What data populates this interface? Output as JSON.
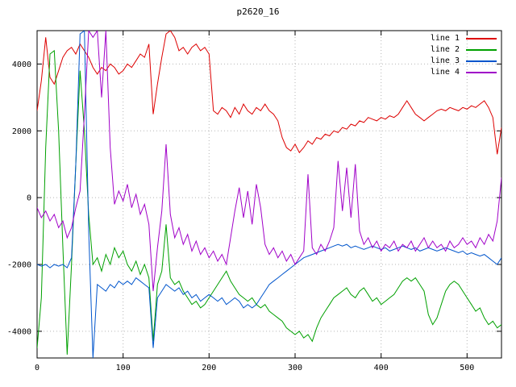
{
  "title": "p2620_16",
  "legend": [
    {
      "label": "line 1",
      "color": "#dd0000"
    },
    {
      "label": "line 2",
      "color": "#00a000"
    },
    {
      "label": "line 3",
      "color": "#0055cc"
    },
    {
      "label": "line 4",
      "color": "#a000c8"
    }
  ],
  "chart_data": {
    "type": "line",
    "title": "p2620_16",
    "xlabel": "",
    "ylabel": "",
    "xlim": [
      0,
      540
    ],
    "ylim": [
      -4800,
      5000
    ],
    "xticks": [
      0,
      100,
      200,
      300,
      400,
      500
    ],
    "yticks": [
      -4000,
      -2000,
      0,
      2000,
      4000
    ],
    "grid": true,
    "legend_position": "top-right",
    "x": [
      0,
      5,
      10,
      15,
      20,
      25,
      30,
      35,
      40,
      45,
      50,
      55,
      60,
      65,
      70,
      75,
      80,
      85,
      90,
      95,
      100,
      105,
      110,
      115,
      120,
      125,
      130,
      135,
      140,
      145,
      150,
      155,
      160,
      165,
      170,
      175,
      180,
      185,
      190,
      195,
      200,
      205,
      210,
      215,
      220,
      225,
      230,
      235,
      240,
      245,
      250,
      255,
      260,
      265,
      270,
      275,
      280,
      285,
      290,
      295,
      300,
      305,
      310,
      315,
      320,
      325,
      330,
      335,
      340,
      345,
      350,
      355,
      360,
      365,
      370,
      375,
      380,
      385,
      390,
      395,
      400,
      405,
      410,
      415,
      420,
      425,
      430,
      435,
      440,
      445,
      450,
      455,
      460,
      465,
      470,
      475,
      480,
      485,
      490,
      495,
      500,
      505,
      510,
      515,
      520,
      525,
      530,
      535,
      540
    ],
    "series": [
      {
        "name": "line 1",
        "color": "#dd0000",
        "values": [
          2600,
          3500,
          4800,
          3600,
          3400,
          3800,
          4200,
          4400,
          4500,
          4300,
          4600,
          4400,
          4200,
          3900,
          3700,
          3900,
          3800,
          4000,
          3900,
          3700,
          3800,
          4000,
          3900,
          4100,
          4300,
          4200,
          4600,
          2500,
          3400,
          4200,
          4900,
          5000,
          4800,
          4400,
          4500,
          4300,
          4500,
          4600,
          4400,
          4500,
          4300,
          2600,
          2500,
          2700,
          2600,
          2400,
          2700,
          2500,
          2800,
          2600,
          2500,
          2700,
          2600,
          2800,
          2600,
          2500,
          2300,
          1800,
          1500,
          1400,
          1600,
          1350,
          1500,
          1700,
          1600,
          1800,
          1750,
          1900,
          1850,
          2000,
          1950,
          2100,
          2050,
          2200,
          2150,
          2300,
          2250,
          2400,
          2350,
          2300,
          2400,
          2350,
          2450,
          2400,
          2500,
          2700,
          2900,
          2700,
          2500,
          2400,
          2300,
          2400,
          2500,
          2600,
          2650,
          2600,
          2700,
          2650,
          2600,
          2700,
          2650,
          2750,
          2700,
          2800,
          2900,
          2700,
          2400,
          1300,
          2100
        ]
      },
      {
        "name": "line 2",
        "color": "#00a000",
        "values": [
          -4500,
          -3000,
          1500,
          4300,
          4400,
          2000,
          -1500,
          -4700,
          -2000,
          1000,
          3800,
          2000,
          -500,
          -2000,
          -1800,
          -2200,
          -1700,
          -2000,
          -1500,
          -1800,
          -1600,
          -2000,
          -2200,
          -1900,
          -2300,
          -2000,
          -2400,
          -4300,
          -2600,
          -2200,
          -800,
          -2400,
          -2600,
          -2500,
          -2800,
          -3000,
          -3200,
          -3100,
          -3300,
          -3200,
          -3000,
          -2800,
          -2600,
          -2400,
          -2200,
          -2500,
          -2700,
          -2900,
          -3000,
          -3100,
          -3000,
          -3200,
          -3300,
          -3200,
          -3400,
          -3500,
          -3600,
          -3700,
          -3900,
          -4000,
          -4100,
          -4000,
          -4200,
          -4100,
          -4300,
          -3900,
          -3600,
          -3400,
          -3200,
          -3000,
          -2900,
          -2800,
          -2700,
          -2900,
          -3000,
          -2800,
          -2700,
          -2900,
          -3100,
          -3000,
          -3200,
          -3100,
          -3000,
          -2900,
          -2700,
          -2500,
          -2400,
          -2500,
          -2400,
          -2600,
          -2800,
          -3500,
          -3800,
          -3600,
          -3200,
          -2800,
          -2600,
          -2500,
          -2600,
          -2800,
          -3000,
          -3200,
          -3400,
          -3300,
          -3600,
          -3800,
          -3700,
          -3900,
          -3800
        ]
      },
      {
        "name": "line 3",
        "color": "#0055cc",
        "values": [
          -2000,
          -2050,
          -2000,
          -2100,
          -2000,
          -2050,
          -2000,
          -2100,
          -1800,
          1000,
          4900,
          5000,
          -1000,
          -4800,
          -2600,
          -2700,
          -2800,
          -2600,
          -2700,
          -2500,
          -2600,
          -2500,
          -2600,
          -2400,
          -2500,
          -2600,
          -2700,
          -4500,
          -3000,
          -2800,
          -2600,
          -2700,
          -2800,
          -2700,
          -2900,
          -2800,
          -3000,
          -2900,
          -3100,
          -3000,
          -2900,
          -3000,
          -3100,
          -3000,
          -3200,
          -3100,
          -3000,
          -3100,
          -3300,
          -3200,
          -3300,
          -3200,
          -3000,
          -2800,
          -2600,
          -2500,
          -2400,
          -2300,
          -2200,
          -2100,
          -2000,
          -1900,
          -1800,
          -1750,
          -1700,
          -1650,
          -1600,
          -1550,
          -1500,
          -1450,
          -1400,
          -1450,
          -1400,
          -1500,
          -1450,
          -1500,
          -1550,
          -1500,
          -1450,
          -1500,
          -1550,
          -1500,
          -1600,
          -1550,
          -1500,
          -1450,
          -1500,
          -1550,
          -1500,
          -1600,
          -1550,
          -1500,
          -1550,
          -1600,
          -1550,
          -1500,
          -1550,
          -1600,
          -1650,
          -1600,
          -1700,
          -1650,
          -1700,
          -1750,
          -1700,
          -1800,
          -1900,
          -2000,
          -1800
        ]
      },
      {
        "name": "line 4",
        "color": "#a000c8",
        "values": [
          -300,
          -600,
          -400,
          -700,
          -500,
          -900,
          -700,
          -1200,
          -900,
          -300,
          200,
          2500,
          5000,
          4800,
          5000,
          3000,
          5000,
          1500,
          -200,
          200,
          -100,
          400,
          -300,
          100,
          -500,
          -200,
          -800,
          -2800,
          -1500,
          -400,
          1600,
          -500,
          -1200,
          -900,
          -1400,
          -1100,
          -1600,
          -1300,
          -1700,
          -1500,
          -1800,
          -1600,
          -1900,
          -1700,
          -2000,
          -1200,
          -400,
          300,
          -600,
          200,
          -800,
          400,
          -300,
          -1400,
          -1700,
          -1500,
          -1800,
          -1600,
          -1900,
          -1700,
          -2000,
          -1800,
          -1600,
          700,
          -1500,
          -1700,
          -1400,
          -1600,
          -1300,
          -900,
          1100,
          -400,
          900,
          -600,
          1000,
          -1000,
          -1400,
          -1200,
          -1500,
          -1300,
          -1600,
          -1400,
          -1500,
          -1300,
          -1600,
          -1400,
          -1500,
          -1300,
          -1600,
          -1400,
          -1200,
          -1500,
          -1300,
          -1500,
          -1400,
          -1600,
          -1300,
          -1500,
          -1400,
          -1200,
          -1400,
          -1300,
          -1500,
          -1200,
          -1400,
          -1100,
          -1300,
          -700,
          600
        ]
      }
    ]
  }
}
